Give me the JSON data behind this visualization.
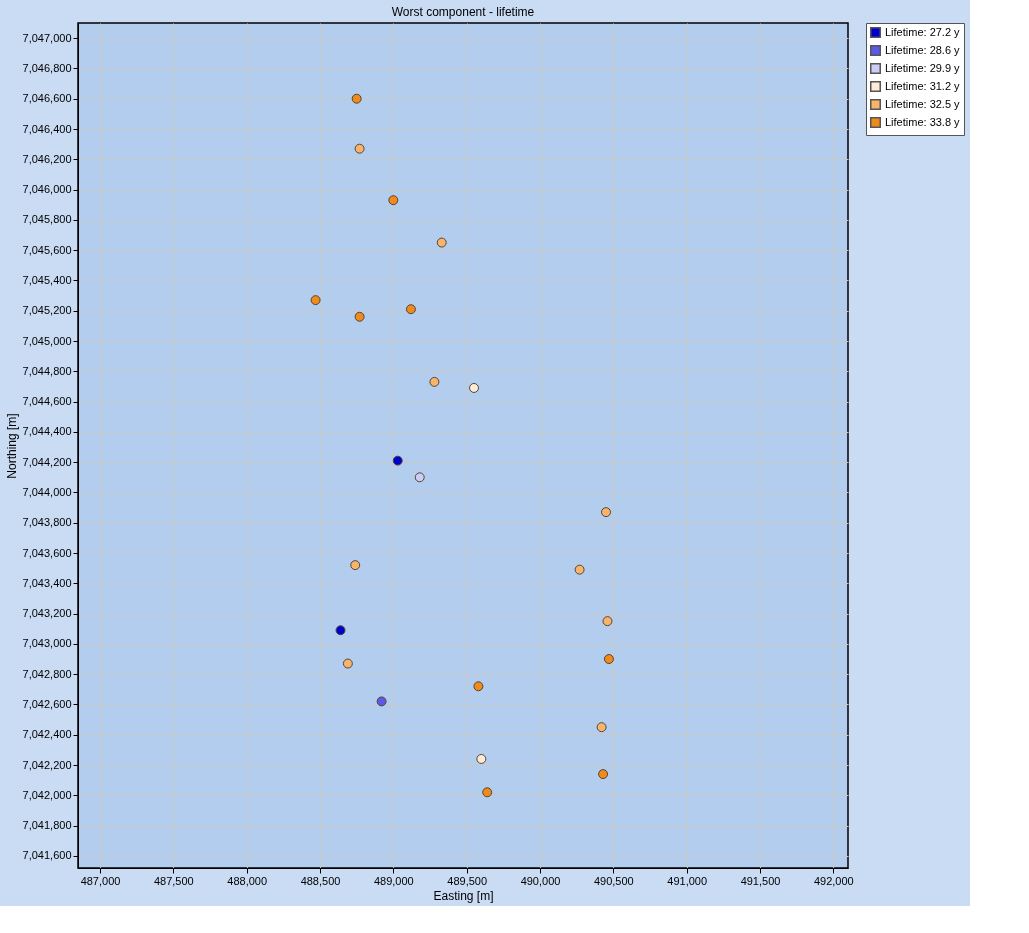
{
  "chart_data": {
    "type": "scatter",
    "title": "Worst component - lifetime",
    "xlabel": "Easting  [m]",
    "ylabel": "Northing [m]",
    "xlim": [
      486850,
      492100
    ],
    "ylim": [
      7041520,
      7047100
    ],
    "xticks": [
      {
        "value": 487000,
        "label": "487,000"
      },
      {
        "value": 487500,
        "label": "487,500"
      },
      {
        "value": 488000,
        "label": "488,000"
      },
      {
        "value": 488500,
        "label": "488,500"
      },
      {
        "value": 489000,
        "label": "489,000"
      },
      {
        "value": 489500,
        "label": "489,500"
      },
      {
        "value": 490000,
        "label": "490,000"
      },
      {
        "value": 490500,
        "label": "490,500"
      },
      {
        "value": 491000,
        "label": "491,000"
      },
      {
        "value": 491500,
        "label": "491,500"
      },
      {
        "value": 492000,
        "label": "492,000"
      }
    ],
    "yticks": [
      {
        "value": 7041600,
        "label": "7,041,600"
      },
      {
        "value": 7041800,
        "label": "7,041,800"
      },
      {
        "value": 7042000,
        "label": "7,042,000"
      },
      {
        "value": 7042200,
        "label": "7,042,200"
      },
      {
        "value": 7042400,
        "label": "7,042,400"
      },
      {
        "value": 7042600,
        "label": "7,042,600"
      },
      {
        "value": 7042800,
        "label": "7,042,800"
      },
      {
        "value": 7043000,
        "label": "7,043,000"
      },
      {
        "value": 7043200,
        "label": "7,043,200"
      },
      {
        "value": 7043400,
        "label": "7,043,400"
      },
      {
        "value": 7043600,
        "label": "7,043,600"
      },
      {
        "value": 7043800,
        "label": "7,043,800"
      },
      {
        "value": 7044000,
        "label": "7,044,000"
      },
      {
        "value": 7044200,
        "label": "7,044,200"
      },
      {
        "value": 7044400,
        "label": "7,044,400"
      },
      {
        "value": 7044600,
        "label": "7,044,600"
      },
      {
        "value": 7044800,
        "label": "7,044,800"
      },
      {
        "value": 7045000,
        "label": "7,045,000"
      },
      {
        "value": 7045200,
        "label": "7,045,200"
      },
      {
        "value": 7045400,
        "label": "7,045,400"
      },
      {
        "value": 7045600,
        "label": "7,045,600"
      },
      {
        "value": 7045800,
        "label": "7,045,800"
      },
      {
        "value": 7046000,
        "label": "7,046,000"
      },
      {
        "value": 7046200,
        "label": "7,046,200"
      },
      {
        "value": 7046400,
        "label": "7,046,400"
      },
      {
        "value": 7046600,
        "label": "7,046,600"
      },
      {
        "value": 7046800,
        "label": "7,046,800"
      },
      {
        "value": 7047000,
        "label": "7,047,000"
      }
    ],
    "grid": true,
    "legend": "top right",
    "marker": "circle",
    "series": [
      {
        "name": "Lifetime: 27.2 y",
        "color": "#0000cc",
        "x": [
          489030,
          488640
        ],
        "values": [
          7044210,
          7043090
        ]
      },
      {
        "name": "Lifetime: 28.6 y",
        "color": "#5a5ae6",
        "x": [
          488920
        ],
        "values": [
          7042620
        ]
      },
      {
        "name": "Lifetime: 29.9 y",
        "color": "#ccccf5",
        "x": [
          489180
        ],
        "values": [
          7044100
        ]
      },
      {
        "name": "Lifetime: 31.2 y",
        "color": "#fdebd6",
        "x": [
          489550,
          489600
        ],
        "values": [
          7044690,
          7042240
        ]
      },
      {
        "name": "Lifetime: 32.5 y",
        "color": "#f9b46c",
        "x": [
          488770,
          489330,
          489280,
          490450,
          488740,
          490270,
          490460,
          488690,
          490420
        ],
        "values": [
          7046270,
          7045650,
          7044730,
          7043870,
          7043520,
          7043490,
          7043150,
          7042870,
          7042450
        ]
      },
      {
        "name": "Lifetime: 33.8 y",
        "color": "#f08a1a",
        "x": [
          488750,
          489000,
          488470,
          488770,
          489120,
          490470,
          489580,
          490430,
          489640
        ],
        "values": [
          7046600,
          7045930,
          7045270,
          7045160,
          7045210,
          7042900,
          7042720,
          7042140,
          7042020
        ]
      }
    ]
  }
}
